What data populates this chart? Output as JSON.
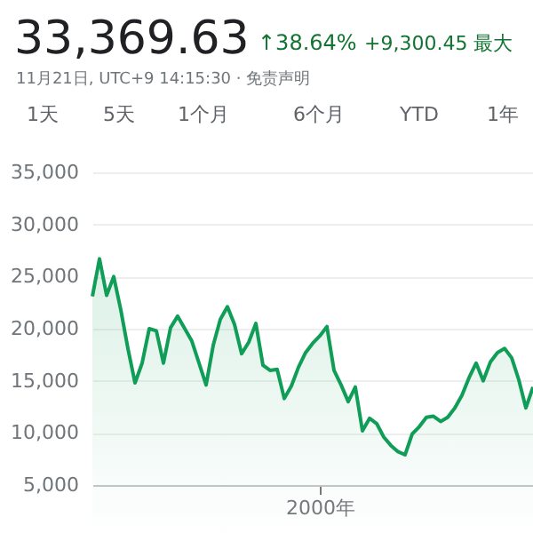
{
  "chart_data": {
    "type": "area",
    "title": "33,369.63",
    "subtitle": "11月21日, UTC+9 14:15:30 · 免责声明",
    "annotations": [
      "↑38.64%",
      "+9,300.45 最大",
      "1天",
      "5天",
      "1个月",
      "6个月",
      "YTD",
      "1年"
    ],
    "categories": [
      null,
      null,
      null,
      null,
      null,
      null,
      null,
      null,
      null,
      null,
      null,
      null,
      null,
      null,
      null,
      null,
      null,
      null,
      null,
      null,
      null,
      null,
      null,
      null,
      null,
      null,
      null,
      null,
      null,
      null,
      null,
      null,
      "2000年",
      null,
      null,
      null,
      null,
      null,
      null,
      null,
      null,
      null,
      null,
      null,
      null,
      null,
      null,
      null,
      null,
      null,
      null,
      null,
      null,
      null,
      null,
      null,
      null,
      null,
      null,
      null,
      null,
      null,
      null
    ],
    "series": [
      {
        "color": "#0f9d58",
        "values": [
          23100,
          26700,
          23200,
          25000,
          21800,
          18100,
          14800,
          16700,
          20000,
          19800,
          16700,
          20100,
          21200,
          20000,
          18800,
          16700,
          14600,
          18400,
          20900,
          22100,
          20400,
          17600,
          18700,
          20500,
          16500,
          16000,
          16100,
          13300,
          14500,
          16300,
          17700,
          18600,
          19300,
          20200,
          16000,
          14600,
          13000,
          14400,
          10200,
          11400,
          10900,
          9600,
          8800,
          8200,
          7900,
          9900,
          10600,
          11500,
          11600,
          11100,
          11500,
          12400,
          13600,
          15300,
          16700,
          15000,
          16800,
          17700,
          18100,
          17200,
          15100,
          12400,
          14400
        ]
      }
    ],
    "ylim": [
      5000,
      35000
    ],
    "yticks": [
      {
        "value": 5000,
        "label": "5,000"
      },
      {
        "value": 10000,
        "label": "10,000"
      },
      {
        "value": 15000,
        "label": "15,000"
      },
      {
        "value": 20000,
        "label": "20,000"
      },
      {
        "value": 25000,
        "label": "25,000"
      },
      {
        "value": 30000,
        "label": "30,000"
      },
      {
        "value": 35000,
        "label": "35,000"
      }
    ],
    "grid": "y"
  }
}
